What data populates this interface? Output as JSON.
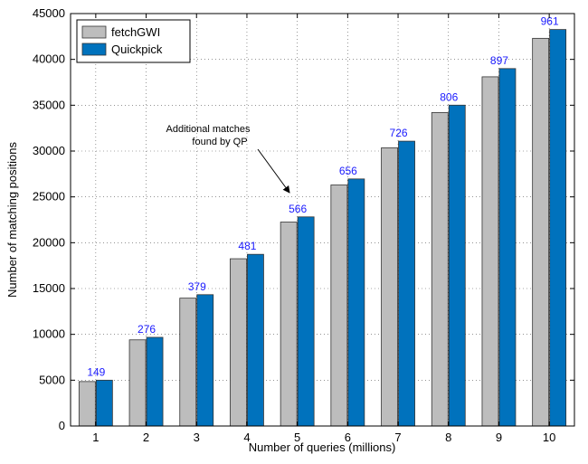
{
  "chart_data": {
    "type": "bar",
    "title": "",
    "xlabel": "Number of queries (millions)",
    "ylabel": "Number of matching positions",
    "categories": [
      "1",
      "2",
      "3",
      "4",
      "5",
      "6",
      "7",
      "8",
      "9",
      "10"
    ],
    "ylim": [
      0,
      45000
    ],
    "yticks": [
      0,
      5000,
      10000,
      15000,
      20000,
      25000,
      30000,
      35000,
      40000,
      45000
    ],
    "grid": true,
    "legend_position": "top-left",
    "series": [
      {
        "name": "fetchGWI",
        "color": "#bdbdbd",
        "values": [
          4850,
          9400,
          13950,
          18250,
          22250,
          26300,
          30350,
          34200,
          38100,
          42300
        ]
      },
      {
        "name": "Quickpick",
        "color": "#0072bd",
        "values": [
          5000,
          9676,
          14329,
          18731,
          22816,
          26956,
          31076,
          35006,
          38997,
          43261
        ]
      }
    ],
    "data_labels": [
      "149",
      "276",
      "379",
      "481",
      "566",
      "656",
      "726",
      "806",
      "897",
      "961"
    ],
    "data_label_color": "#1a1aff",
    "annotation": {
      "lines": [
        "Additional matches",
        "found by QP"
      ],
      "target_category": "5"
    }
  }
}
